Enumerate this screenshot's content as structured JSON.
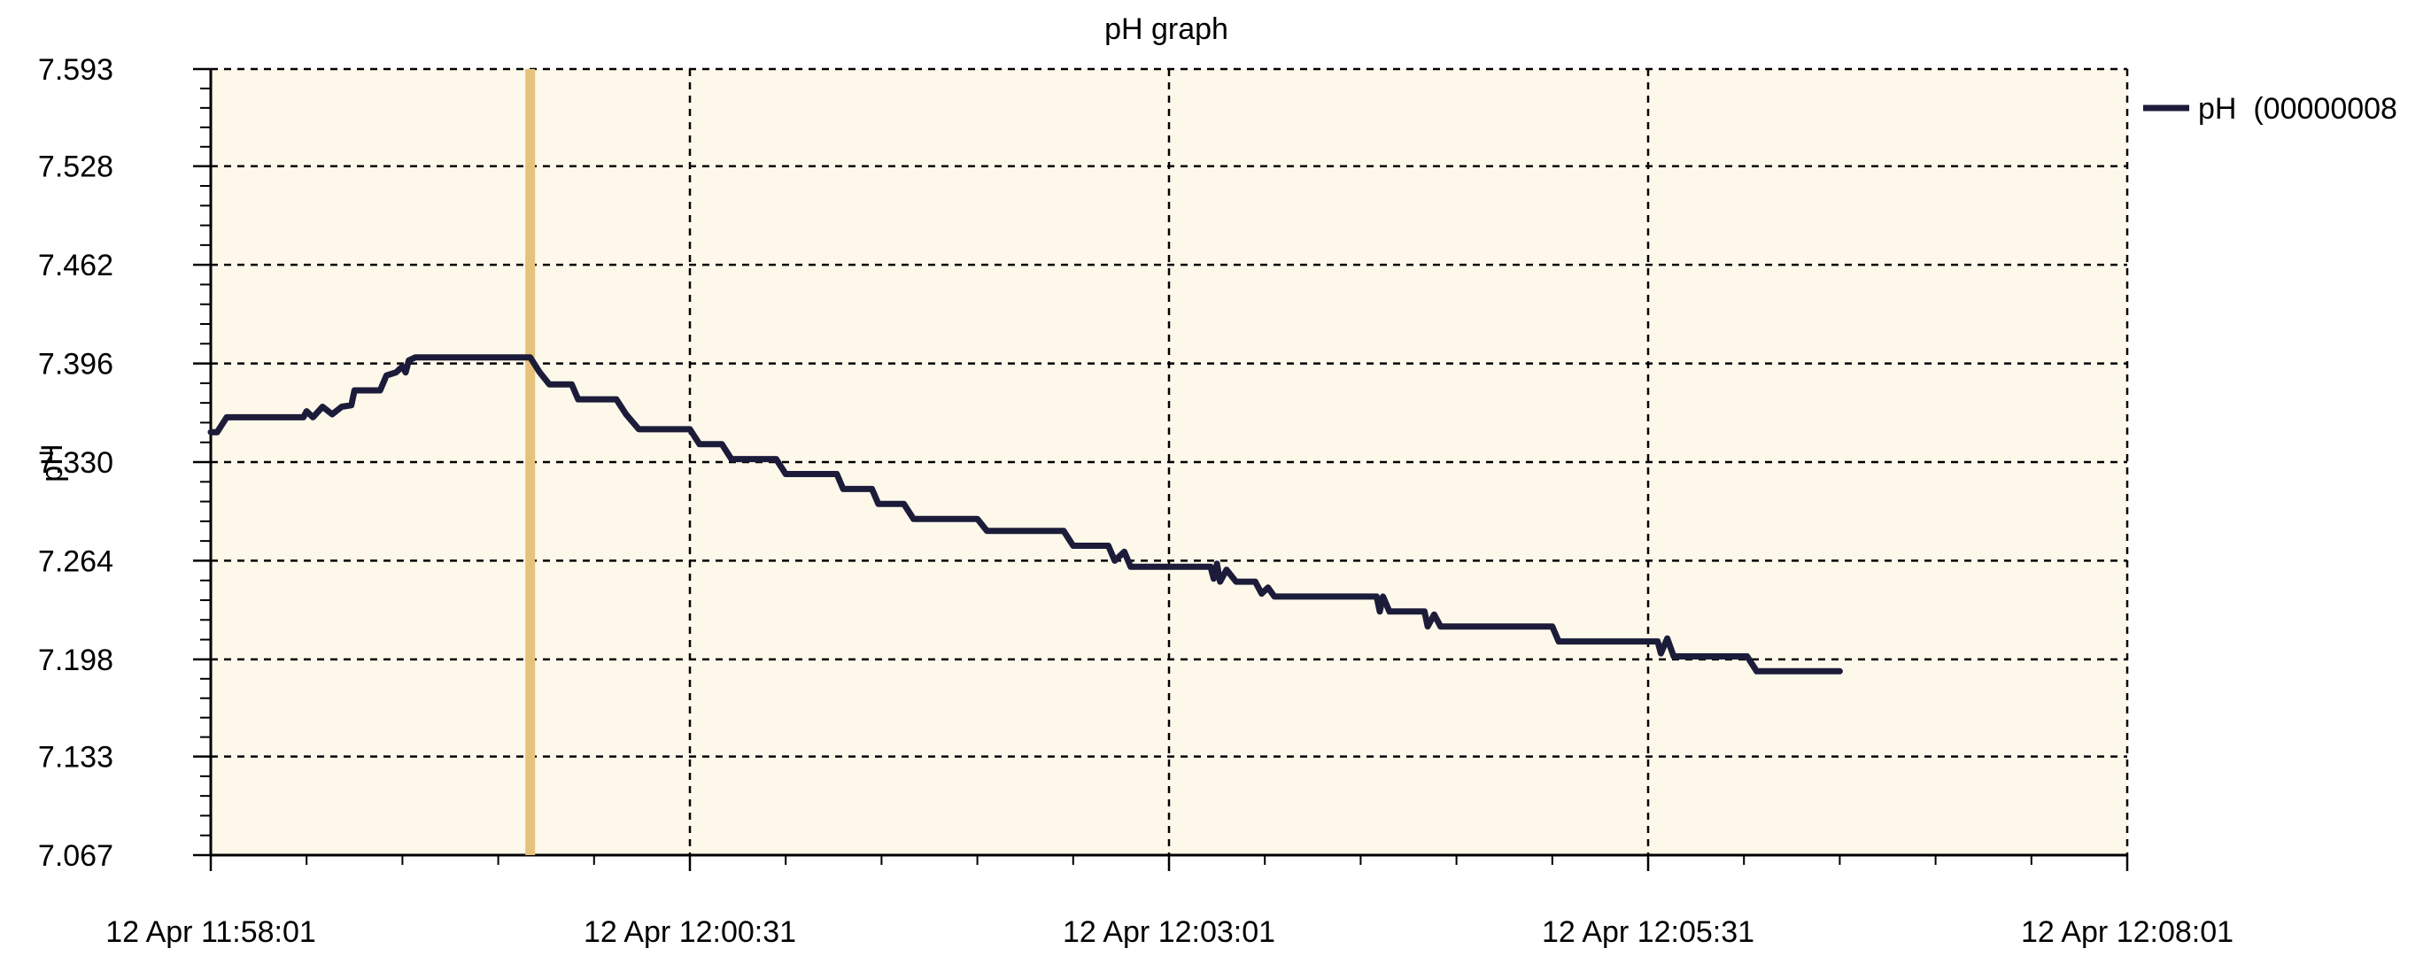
{
  "chart_data": {
    "type": "line",
    "title": "pH graph",
    "ylabel": "pH",
    "xlabel": "",
    "ylim": [
      7.067,
      7.593
    ],
    "y_ticks": [
      "7.593",
      "7.528",
      "7.462",
      "7.396",
      "7.330",
      "7.264",
      "7.198",
      "7.133",
      "7.067"
    ],
    "x_range": [
      "12 Apr 11:58:01",
      "12 Apr 12:08:01"
    ],
    "x_ticks": [
      "12 Apr 11:58:01",
      "12 Apr 12:00:31",
      "12 Apr 12:03:01",
      "12 Apr 12:05:31",
      "12 Apr 12:08:01"
    ],
    "grid": true,
    "legend_position": "right",
    "plot_background": "#fdf8ea",
    "marker": {
      "x": "12 Apr 11:59:41",
      "color": "#e6c37a"
    },
    "series": [
      {
        "name": "pH  (00000008",
        "color": "#1c1c3a",
        "points": [
          [
            "11:58:01",
            7.35
          ],
          [
            "11:58:03",
            7.35
          ],
          [
            "11:58:06",
            7.36
          ],
          [
            "11:58:30",
            7.36
          ],
          [
            "11:58:31",
            7.364
          ],
          [
            "11:58:33",
            7.36
          ],
          [
            "11:58:36",
            7.367
          ],
          [
            "11:58:39",
            7.362
          ],
          [
            "11:58:42",
            7.367
          ],
          [
            "11:58:45",
            7.368
          ],
          [
            "11:58:46",
            7.378
          ],
          [
            "11:58:54",
            7.378
          ],
          [
            "11:58:56",
            7.388
          ],
          [
            "11:58:59",
            7.39
          ],
          [
            "11:59:01",
            7.394
          ],
          [
            "11:59:02",
            7.39
          ],
          [
            "11:59:03",
            7.398
          ],
          [
            "11:59:05",
            7.4
          ],
          [
            "11:59:41",
            7.4
          ],
          [
            "11:59:44",
            7.39
          ],
          [
            "11:59:47",
            7.382
          ],
          [
            "11:59:54",
            7.382
          ],
          [
            "11:59:56",
            7.372
          ],
          [
            "12:00:08",
            7.372
          ],
          [
            "12:00:11",
            7.362
          ],
          [
            "12:00:15",
            7.352
          ],
          [
            "12:00:31",
            7.352
          ],
          [
            "12:00:34",
            7.342
          ],
          [
            "12:00:41",
            7.342
          ],
          [
            "12:00:44",
            7.332
          ],
          [
            "12:00:58",
            7.332
          ],
          [
            "12:01:01",
            7.322
          ],
          [
            "12:01:17",
            7.322
          ],
          [
            "12:01:19",
            7.312
          ],
          [
            "12:01:28",
            7.312
          ],
          [
            "12:01:30",
            7.302
          ],
          [
            "12:01:38",
            7.302
          ],
          [
            "12:01:41",
            7.292
          ],
          [
            "12:02:01",
            7.292
          ],
          [
            "12:02:04",
            7.284
          ],
          [
            "12:02:28",
            7.284
          ],
          [
            "12:02:31",
            7.274
          ],
          [
            "12:02:42",
            7.274
          ],
          [
            "12:02:44",
            7.264
          ],
          [
            "12:02:47",
            7.27
          ],
          [
            "12:02:49",
            7.26
          ],
          [
            "12:03:14",
            7.26
          ],
          [
            "12:03:15",
            7.252
          ],
          [
            "12:03:16",
            7.262
          ],
          [
            "12:03:17",
            7.25
          ],
          [
            "12:03:19",
            7.258
          ],
          [
            "12:03:22",
            7.25
          ],
          [
            "12:03:28",
            7.25
          ],
          [
            "12:03:30",
            7.242
          ],
          [
            "12:03:32",
            7.246
          ],
          [
            "12:03:34",
            7.24
          ],
          [
            "12:04:06",
            7.24
          ],
          [
            "12:04:07",
            7.23
          ],
          [
            "12:04:08",
            7.24
          ],
          [
            "12:04:10",
            7.23
          ],
          [
            "12:04:21",
            7.23
          ],
          [
            "12:04:22",
            7.22
          ],
          [
            "12:04:24",
            7.228
          ],
          [
            "12:04:26",
            7.22
          ],
          [
            "12:05:01",
            7.22
          ],
          [
            "12:05:03",
            7.21
          ],
          [
            "12:05:34",
            7.21
          ],
          [
            "12:05:35",
            7.202
          ],
          [
            "12:05:37",
            7.212
          ],
          [
            "12:05:39",
            7.2
          ],
          [
            "12:06:02",
            7.2
          ],
          [
            "12:06:05",
            7.19
          ],
          [
            "12:06:31",
            7.19
          ]
        ]
      }
    ]
  }
}
